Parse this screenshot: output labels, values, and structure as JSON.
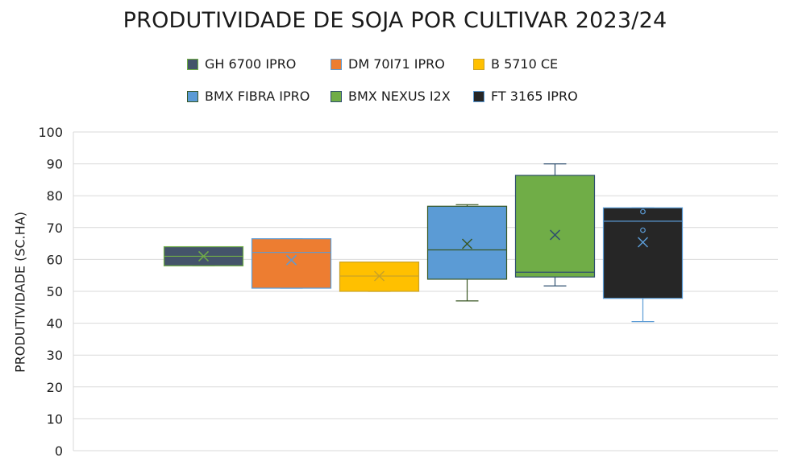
{
  "chart_data": {
    "type": "box",
    "title": "PRODUTIVIDADE DE SOJA POR CULTIVAR 2023/24",
    "ylabel": "PRODUTIVIDADE (SC.HA)",
    "ylim": [
      0,
      100
    ],
    "yticks": [
      "0",
      "10",
      "20",
      "30",
      "40",
      "50",
      "60",
      "70",
      "80",
      "90",
      "100"
    ],
    "grid": true,
    "legend_position": "top",
    "series": [
      {
        "name": "GH 6700 IPRO",
        "color": "#44546A",
        "line": "#70AD47",
        "whisker_low": 58,
        "q1": 58,
        "median": 61,
        "q3": 64,
        "whisker_high": 64,
        "mean": 61,
        "outliers": []
      },
      {
        "name": "DM 70I71 IPRO",
        "color": "#ED7D31",
        "line": "#5B9BD5",
        "whisker_low": 51,
        "q1": 51,
        "median": 62.2,
        "q3": 66.5,
        "whisker_high": 66.5,
        "mean": 59.8,
        "outliers": []
      },
      {
        "name": "B 5710 CE",
        "color": "#FFC000",
        "line": "#C9A227",
        "whisker_low": 50,
        "q1": 50,
        "median": 54.8,
        "q3": 59.2,
        "whisker_high": 59.2,
        "mean": 54.8,
        "outliers": []
      },
      {
        "name": "BMX FIBRA IPRO",
        "color": "#5B9BD5",
        "line": "#385723",
        "whisker_low": 47,
        "q1": 53.8,
        "median": 63,
        "q3": 76.7,
        "whisker_high": 77.2,
        "mean": 64.9,
        "outliers": []
      },
      {
        "name": "BMX NEXUS I2X",
        "color": "#70AD47",
        "line": "#2F4F6F",
        "whisker_low": 51.7,
        "q1": 54.5,
        "median": 56,
        "q3": 86.4,
        "whisker_high": 90,
        "mean": 67.7,
        "outliers": []
      },
      {
        "name": "FT 3165 IPRO",
        "color": "#262626",
        "line": "#5B9BD5",
        "whisker_low": 40.5,
        "q1": 47.8,
        "median": 72,
        "q3": 76.2,
        "whisker_high": 76.2,
        "mean": 65.4,
        "outliers": [
          75,
          69.2
        ]
      }
    ]
  }
}
